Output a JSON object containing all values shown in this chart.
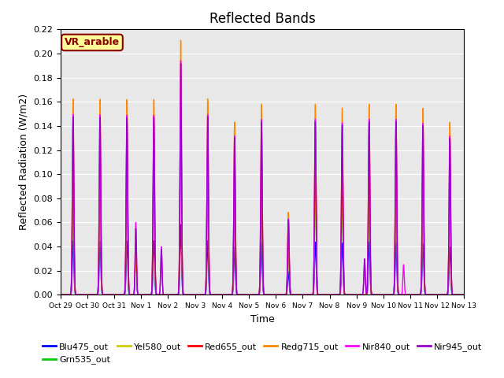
{
  "title": "Reflected Bands",
  "xlabel": "Time",
  "ylabel": "Reflected Radiation (W/m2)",
  "annotation": "VR_arable",
  "annotation_color": "#8B0000",
  "annotation_bg": "#FFFF99",
  "ylim": [
    0,
    0.22
  ],
  "yticks": [
    0.0,
    0.02,
    0.04,
    0.06,
    0.08,
    0.1,
    0.12,
    0.14,
    0.16,
    0.18,
    0.2,
    0.22
  ],
  "xtick_labels": [
    "Oct 29",
    "Oct 30",
    "Oct 31",
    "Nov 1",
    "Nov 2",
    "Nov 3",
    "Nov 4",
    "Nov 5",
    "Nov 6",
    "Nov 7",
    "Nov 8",
    "Nov 9",
    "Nov 10",
    "Nov 11",
    "Nov 12",
    "Nov 13"
  ],
  "series_order": [
    "Blu475_out",
    "Grn535_out",
    "Yel580_out",
    "Red655_out",
    "Redg715_out",
    "Nir840_out",
    "Nir945_out"
  ],
  "series": {
    "Blu475_out": {
      "color": "#0000FF",
      "lw": 1.0
    },
    "Grn535_out": {
      "color": "#00CC00",
      "lw": 1.0
    },
    "Yel580_out": {
      "color": "#CCCC00",
      "lw": 1.0
    },
    "Red655_out": {
      "color": "#FF0000",
      "lw": 1.0
    },
    "Redg715_out": {
      "color": "#FF8800",
      "lw": 1.0
    },
    "Nir840_out": {
      "color": "#FF00FF",
      "lw": 1.0
    },
    "Nir945_out": {
      "color": "#9900CC",
      "lw": 1.0
    }
  },
  "background_color": "#E8E8E8",
  "fig_bg": "#FFFFFF",
  "title_fontsize": 12,
  "n_days": 15,
  "pts_per_day": 144
}
